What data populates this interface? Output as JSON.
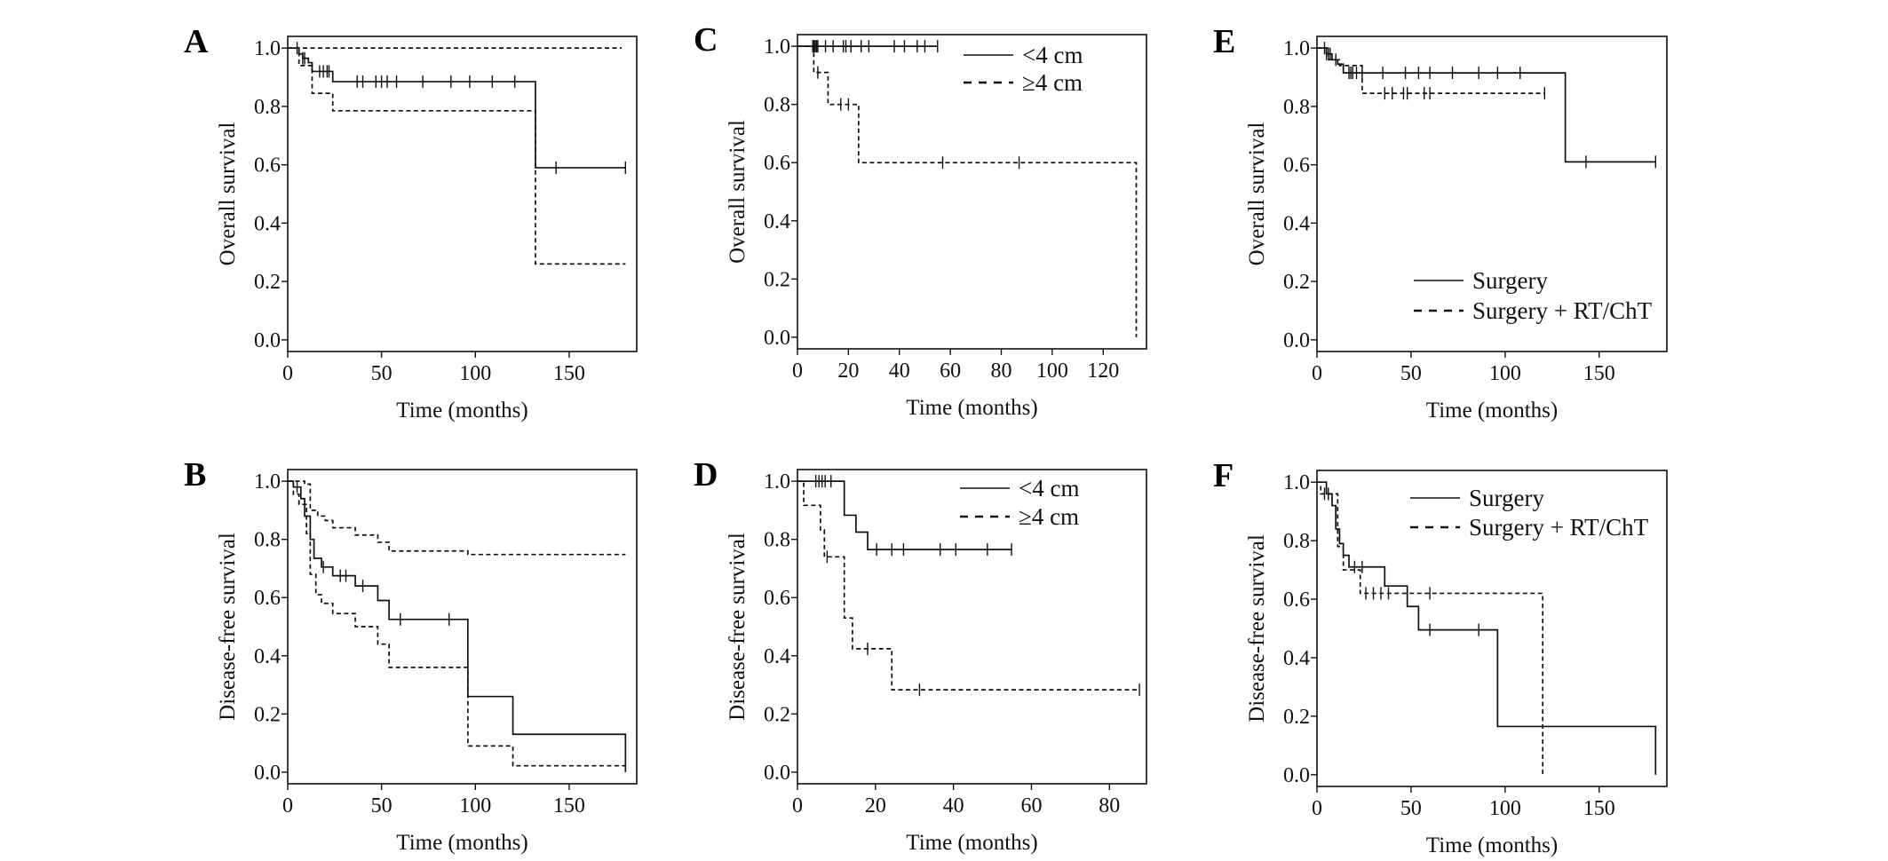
{
  "colors": {
    "line": "#111111",
    "background": "#ffffff"
  },
  "chart_data": [
    {
      "panel": "A",
      "type": "line",
      "step": true,
      "xlabel": "Time (months)",
      "ylabel": "Overall survival",
      "xlim": [
        0,
        186
      ],
      "ylim": [
        -0.04,
        1.04
      ],
      "xticks": [
        0,
        50,
        100,
        150
      ],
      "yticks": [
        "0.0",
        "0.2",
        "0.4",
        "0.6",
        "0.8",
        "1.0"
      ],
      "grid": false,
      "legend": null,
      "series": [
        {
          "style": "solid",
          "end": 180,
          "steps": [
            [
              0,
              1.0
            ],
            [
              6,
              0.98
            ],
            [
              8,
              0.965
            ],
            [
              11,
              0.95
            ],
            [
              13,
              0.92
            ],
            [
              24,
              0.885
            ],
            [
              132,
              0.59
            ]
          ],
          "censored": [
            5,
            8,
            9,
            17,
            19,
            21,
            22,
            37,
            40,
            47,
            50,
            53,
            58,
            72,
            87,
            97,
            109,
            121,
            143,
            180
          ]
        },
        {
          "style": "dashed",
          "end": 178,
          "steps": [
            [
              0,
              1.0
            ]
          ],
          "censored": []
        },
        {
          "style": "dashed",
          "end": 180,
          "steps": [
            [
              0,
              1.0
            ],
            [
              6,
              0.94
            ],
            [
              13,
              0.845
            ],
            [
              24,
              0.785
            ],
            [
              132,
              0.26
            ]
          ],
          "censored": []
        }
      ]
    },
    {
      "panel": "B",
      "type": "line",
      "step": true,
      "xlabel": "Time (months)",
      "ylabel": "Disease-free survival",
      "xlim": [
        0,
        186
      ],
      "ylim": [
        -0.04,
        1.04
      ],
      "xticks": [
        0,
        50,
        100,
        150
      ],
      "yticks": [
        "0.0",
        "0.2",
        "0.4",
        "0.6",
        "0.8",
        "1.0"
      ],
      "grid": false,
      "legend": null,
      "series": [
        {
          "style": "solid",
          "end": 180,
          "steps": [
            [
              0,
              1.0
            ],
            [
              3,
              0.98
            ],
            [
              7,
              0.94
            ],
            [
              9,
              0.88
            ],
            [
              12,
              0.8
            ],
            [
              14,
              0.735
            ],
            [
              18,
              0.705
            ],
            [
              24,
              0.675
            ],
            [
              36,
              0.64
            ],
            [
              48,
              0.59
            ],
            [
              54,
              0.525
            ],
            [
              96,
              0.26
            ],
            [
              120,
              0.13
            ],
            [
              180,
              0.0
            ]
          ],
          "censored": [
            5,
            19,
            28,
            31,
            40,
            60,
            86
          ]
        },
        {
          "style": "dashed",
          "end": 180,
          "steps": [
            [
              0,
              1.0
            ],
            [
              9,
              0.99
            ],
            [
              12,
              0.9
            ],
            [
              16,
              0.88
            ],
            [
              20,
              0.865
            ],
            [
              24,
              0.84
            ],
            [
              36,
              0.815
            ],
            [
              48,
              0.79
            ],
            [
              54,
              0.76
            ],
            [
              96,
              0.748
            ]
          ],
          "censored": []
        },
        {
          "style": "dashed",
          "end": 180,
          "steps": [
            [
              0,
              1.0
            ],
            [
              3,
              0.955
            ],
            [
              6,
              0.92
            ],
            [
              10,
              0.82
            ],
            [
              12,
              0.68
            ],
            [
              15,
              0.61
            ],
            [
              18,
              0.58
            ],
            [
              24,
              0.545
            ],
            [
              36,
              0.5
            ],
            [
              48,
              0.44
            ],
            [
              54,
              0.36
            ],
            [
              96,
              0.09
            ],
            [
              120,
              0.022
            ]
          ],
          "censored": []
        }
      ]
    },
    {
      "panel": "C",
      "type": "line",
      "step": true,
      "xlabel": "Time (months)",
      "ylabel": "Overall survival",
      "xlim": [
        0,
        137
      ],
      "ylim": [
        -0.04,
        1.04
      ],
      "xticks": [
        0,
        20,
        40,
        60,
        80,
        100,
        120
      ],
      "yticks": [
        "0.0",
        "0.2",
        "0.4",
        "0.6",
        "0.8",
        "1.0"
      ],
      "grid": false,
      "legend": "top-right",
      "series": [
        {
          "name": "<4 cm",
          "style": "solid",
          "end": 55,
          "steps": [
            [
              0,
              1.0
            ]
          ],
          "censored": [
            6,
            6.5,
            7,
            7.5,
            8,
            11,
            14,
            18,
            19,
            21,
            25,
            28,
            38,
            42,
            47,
            50,
            55
          ]
        },
        {
          "name": "≥4 cm",
          "style": "dashed",
          "end": 133,
          "steps": [
            [
              0,
              1.0
            ],
            [
              6.4,
              0.91
            ],
            [
              12,
              0.8
            ],
            [
              24,
              0.6
            ],
            [
              133,
              0.0
            ]
          ],
          "censored": [
            8,
            17,
            20,
            57,
            87
          ]
        }
      ]
    },
    {
      "panel": "D",
      "type": "line",
      "step": true,
      "xlabel": "Time (months)",
      "ylabel": "Disease-free survival",
      "xlim": [
        0,
        89.5
      ],
      "ylim": [
        -0.04,
        1.04
      ],
      "xticks": [
        0,
        20,
        40,
        60,
        80
      ],
      "yticks": [
        "0.0",
        "0.2",
        "0.4",
        "0.6",
        "0.8",
        "1.0"
      ],
      "grid": false,
      "legend": "top-right",
      "series": [
        {
          "name": "<4 cm",
          "style": "solid",
          "end": 55,
          "steps": [
            [
              0,
              1.0
            ],
            [
              12,
              0.883
            ],
            [
              15,
              0.825
            ],
            [
              18,
              0.765
            ]
          ],
          "censored": [
            4.7,
            5.5,
            6.3,
            7.1,
            8.6,
            20.3,
            24.2,
            27.2,
            36.6,
            40.6,
            48.7,
            54.9
          ]
        },
        {
          "name": "≥4 cm",
          "style": "dashed",
          "end": 87.7,
          "steps": [
            [
              0,
              1.0
            ],
            [
              1.6,
              0.917
            ],
            [
              5.9,
              0.833
            ],
            [
              6.9,
              0.74
            ],
            [
              12,
              0.53
            ],
            [
              14.1,
              0.424
            ],
            [
              24.2,
              0.283
            ]
          ],
          "censored": [
            7.6,
            18,
            31.3,
            87.7
          ]
        }
      ]
    },
    {
      "panel": "E",
      "type": "line",
      "step": true,
      "xlabel": "Time (months)",
      "ylabel": "Overall survival",
      "xlim": [
        0,
        186
      ],
      "ylim": [
        -0.04,
        1.04
      ],
      "xticks": [
        0,
        50,
        100,
        150
      ],
      "yticks": [
        "0.0",
        "0.2",
        "0.4",
        "0.6",
        "0.8",
        "1.0"
      ],
      "grid": false,
      "legend": "bottom-right",
      "series": [
        {
          "name": "Surgery",
          "style": "solid",
          "end": 180,
          "steps": [
            [
              0,
              1.0
            ],
            [
              5,
              0.98
            ],
            [
              8,
              0.96
            ],
            [
              11,
              0.945
            ],
            [
              14,
              0.915
            ],
            [
              132,
              0.61
            ]
          ],
          "censored": [
            4,
            5,
            6,
            7,
            17,
            18,
            19,
            21,
            24,
            35,
            47,
            54,
            60,
            72,
            86,
            96,
            108,
            143,
            180
          ]
        },
        {
          "name": "Surgery + RT/ChT",
          "style": "dashed",
          "end": 121,
          "steps": [
            [
              0,
              1.0
            ],
            [
              6,
              0.96
            ],
            [
              12,
              0.94
            ],
            [
              24,
              0.845
            ]
          ],
          "censored": [
            10,
            36,
            40,
            46,
            48,
            57,
            60,
            121
          ]
        }
      ]
    },
    {
      "panel": "F",
      "type": "line",
      "step": true,
      "xlabel": "Time (months)",
      "ylabel": "Disease-free survival",
      "xlim": [
        0,
        186
      ],
      "ylim": [
        -0.04,
        1.04
      ],
      "xticks": [
        0,
        50,
        100,
        150
      ],
      "yticks": [
        "0.0",
        "0.2",
        "0.4",
        "0.6",
        "0.8",
        "1.0"
      ],
      "grid": false,
      "legend": "top-right",
      "series": [
        {
          "name": "Surgery",
          "style": "solid",
          "end": 180,
          "steps": [
            [
              0,
              1.0
            ],
            [
              5,
              0.96
            ],
            [
              8,
              0.92
            ],
            [
              10,
              0.84
            ],
            [
              12,
              0.79
            ],
            [
              14,
              0.75
            ],
            [
              17,
              0.71
            ],
            [
              36,
              0.645
            ],
            [
              48,
              0.575
            ],
            [
              54,
              0.495
            ],
            [
              96,
              0.165
            ],
            [
              180,
              0.0
            ]
          ],
          "censored": [
            6,
            20,
            24,
            60,
            86
          ]
        },
        {
          "name": "Surgery + RT/ChT",
          "style": "dashed",
          "end": 120,
          "steps": [
            [
              0,
              1.0
            ],
            [
              2,
              0.96
            ],
            [
              11,
              0.78
            ],
            [
              14,
              0.7
            ],
            [
              23,
              0.62
            ],
            [
              120,
              0.0
            ]
          ],
          "censored": [
            4,
            6,
            26,
            30,
            34,
            38,
            60
          ]
        }
      ]
    }
  ]
}
